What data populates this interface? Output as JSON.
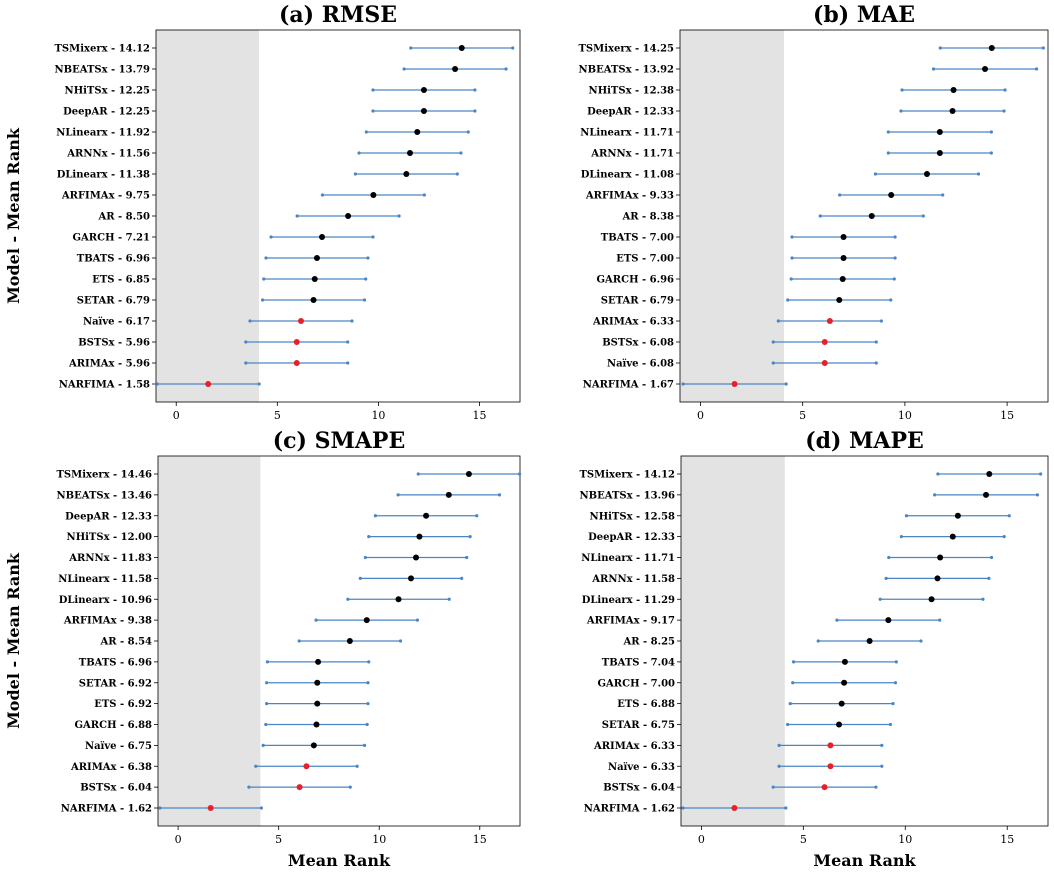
{
  "axis_labels": {
    "y": "Model - Mean Rank",
    "x": "Mean Rank"
  },
  "colors": {
    "line": "#4a86c5",
    "highlight": "#e8202a",
    "normal": "#000000",
    "band": "#e3e3e3"
  },
  "chart_data": [
    {
      "type": "scatter",
      "title": "(a) RMSE",
      "ylabel": "Model - Mean Rank",
      "xlabel": "",
      "xlim": [
        -1,
        17
      ],
      "xticks": [
        0,
        5,
        10,
        15
      ],
      "band": [
        -1,
        4.09
      ],
      "half_interval": 2.52,
      "labels": [
        "TSMixerx - 14.12",
        "NBEATSx - 13.79",
        "NHiTSx - 12.25",
        "DeepAR - 12.25",
        "NLinearx - 11.92",
        "ARNNx - 11.56",
        "DLinearx - 11.38",
        "ARFIMAx - 9.75",
        "AR - 8.50",
        "GARCH - 7.21",
        "TBATS - 6.96",
        "ETS - 6.85",
        "SETAR - 6.79",
        "Naïve - 6.17",
        "BSTSx - 5.96",
        "ARIMAx - 5.96",
        "NARFIMA - 1.58"
      ],
      "values": [
        14.12,
        13.79,
        12.25,
        12.25,
        11.92,
        11.56,
        11.38,
        9.75,
        8.5,
        7.21,
        6.96,
        6.85,
        6.79,
        6.17,
        5.96,
        5.96,
        1.58
      ],
      "highlight": [
        false,
        false,
        false,
        false,
        false,
        false,
        false,
        false,
        false,
        false,
        false,
        false,
        false,
        true,
        true,
        true,
        true
      ]
    },
    {
      "type": "scatter",
      "title": "(b) MAE",
      "ylabel": "",
      "xlabel": "",
      "xlim": [
        -1,
        17
      ],
      "xticks": [
        0,
        5,
        10,
        15
      ],
      "band": [
        -1,
        4.09
      ],
      "half_interval": 2.52,
      "labels": [
        "TSMixerx - 14.25",
        "NBEATSx - 13.92",
        "NHiTSx - 12.38",
        "DeepAR - 12.33",
        "NLinearx - 11.71",
        "ARNNx - 11.71",
        "DLinearx - 11.08",
        "ARFIMAx - 9.33",
        "AR - 8.38",
        "TBATS - 7.00",
        "ETS - 7.00",
        "GARCH - 6.96",
        "SETAR - 6.79",
        "ARIMAx - 6.33",
        "BSTSx - 6.08",
        "Naïve - 6.08",
        "NARFIMA - 1.67"
      ],
      "values": [
        14.25,
        13.92,
        12.38,
        12.33,
        11.71,
        11.71,
        11.08,
        9.33,
        8.38,
        7.0,
        7.0,
        6.96,
        6.79,
        6.33,
        6.08,
        6.08,
        1.67
      ],
      "highlight": [
        false,
        false,
        false,
        false,
        false,
        false,
        false,
        false,
        false,
        false,
        false,
        false,
        false,
        true,
        true,
        true,
        true
      ]
    },
    {
      "type": "scatter",
      "title": "(c) SMAPE",
      "ylabel": "Model - Mean Rank",
      "xlabel": "Mean Rank",
      "xlim": [
        -1,
        17
      ],
      "xticks": [
        0,
        5,
        10,
        15
      ],
      "band": [
        -1,
        4.09
      ],
      "half_interval": 2.52,
      "labels": [
        "TSMixerx - 14.46",
        "NBEATSx - 13.46",
        "DeepAR - 12.33",
        "NHiTSx - 12.00",
        "ARNNx - 11.83",
        "NLinearx - 11.58",
        "DLinearx - 10.96",
        "ARFIMAx - 9.38",
        "AR - 8.54",
        "TBATS - 6.96",
        "SETAR - 6.92",
        "ETS - 6.92",
        "GARCH - 6.88",
        "Naïve - 6.75",
        "ARIMAx - 6.38",
        "BSTSx - 6.04",
        "NARFIMA - 1.62"
      ],
      "values": [
        14.46,
        13.46,
        12.33,
        12.0,
        11.83,
        11.58,
        10.96,
        9.38,
        8.54,
        6.96,
        6.92,
        6.92,
        6.88,
        6.75,
        6.38,
        6.04,
        1.62
      ],
      "highlight": [
        false,
        false,
        false,
        false,
        false,
        false,
        false,
        false,
        false,
        false,
        false,
        false,
        false,
        false,
        true,
        true,
        true
      ]
    },
    {
      "type": "scatter",
      "title": "(d) MAPE",
      "ylabel": "",
      "xlabel": "Mean Rank",
      "xlim": [
        -1,
        17
      ],
      "xticks": [
        0,
        5,
        10,
        15
      ],
      "band": [
        -1,
        4.09
      ],
      "half_interval": 2.52,
      "labels": [
        "TSMixerx - 14.12",
        "NBEATSx - 13.96",
        "NHiTSx - 12.58",
        "DeepAR - 12.33",
        "NLinearx - 11.71",
        "ARNNx - 11.58",
        "DLinearx - 11.29",
        "ARFIMAx - 9.17",
        "AR - 8.25",
        "TBATS - 7.04",
        "GARCH - 7.00",
        "ETS - 6.88",
        "SETAR - 6.75",
        "ARIMAx - 6.33",
        "Naïve - 6.33",
        "BSTSx - 6.04",
        "NARFIMA - 1.62"
      ],
      "values": [
        14.12,
        13.96,
        12.58,
        12.33,
        11.71,
        11.58,
        11.29,
        9.17,
        8.25,
        7.04,
        7.0,
        6.88,
        6.75,
        6.33,
        6.33,
        6.04,
        1.62
      ],
      "highlight": [
        false,
        false,
        false,
        false,
        false,
        false,
        false,
        false,
        false,
        false,
        false,
        false,
        false,
        true,
        true,
        true,
        true
      ]
    }
  ]
}
